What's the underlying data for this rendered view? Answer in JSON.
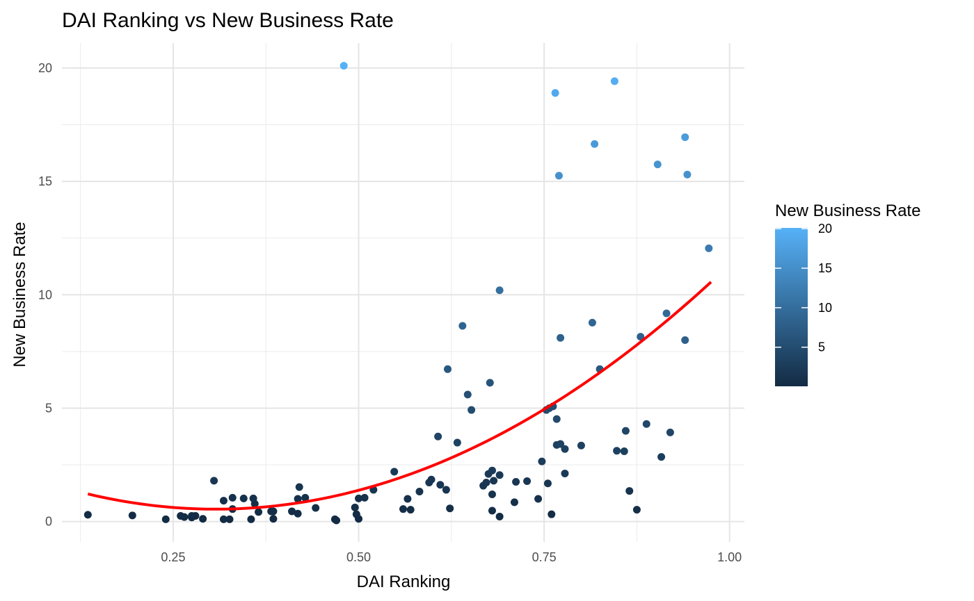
{
  "chart_data": {
    "type": "scatter",
    "title": "DAI Ranking vs New Business Rate",
    "xlabel": "DAI Ranking",
    "ylabel": "New Business Rate",
    "xlim": [
      0.1,
      1.02
    ],
    "ylim": [
      -0.9,
      21.1
    ],
    "x_ticks": [
      0.25,
      0.5,
      0.75,
      1.0
    ],
    "x_tick_labels": [
      "0.25",
      "0.50",
      "0.75",
      "1.00"
    ],
    "y_ticks": [
      0,
      5,
      10,
      15,
      20
    ],
    "y_tick_labels": [
      "0",
      "5",
      "10",
      "15",
      "20"
    ],
    "grid": true,
    "color_scale": {
      "title": "New Business Rate",
      "low_color": "#132b43",
      "high_color": "#56b1f7",
      "min": 0.05,
      "max": 20.1,
      "ticks": [
        5,
        10,
        15,
        20
      ],
      "tick_labels": [
        "5",
        "10",
        "15",
        "20"
      ],
      "legend_position": "right"
    },
    "trend_line": {
      "type": "quadratic fit",
      "color": "#ff0000",
      "x_range": [
        0.135,
        0.975
      ]
    },
    "points": [
      [
        0.135,
        0.3
      ],
      [
        0.195,
        0.27
      ],
      [
        0.24,
        0.1
      ],
      [
        0.26,
        0.25
      ],
      [
        0.265,
        0.2
      ],
      [
        0.275,
        0.25
      ],
      [
        0.275,
        0.18
      ],
      [
        0.28,
        0.25
      ],
      [
        0.29,
        0.12
      ],
      [
        0.305,
        1.8
      ],
      [
        0.318,
        0.1
      ],
      [
        0.318,
        0.92
      ],
      [
        0.326,
        0.1
      ],
      [
        0.33,
        1.05
      ],
      [
        0.33,
        0.55
      ],
      [
        0.345,
        1.02
      ],
      [
        0.355,
        0.1
      ],
      [
        0.358,
        1.02
      ],
      [
        0.36,
        0.78
      ],
      [
        0.365,
        0.42
      ],
      [
        0.382,
        0.45
      ],
      [
        0.385,
        0.45
      ],
      [
        0.385,
        0.12
      ],
      [
        0.41,
        0.45
      ],
      [
        0.418,
        0.35
      ],
      [
        0.418,
        1.0
      ],
      [
        0.42,
        1.52
      ],
      [
        0.428,
        1.05
      ],
      [
        0.442,
        0.6
      ],
      [
        0.468,
        0.1
      ],
      [
        0.47,
        0.05
      ],
      [
        0.48,
        20.1
      ],
      [
        0.495,
        0.62
      ],
      [
        0.497,
        0.32
      ],
      [
        0.5,
        1.02
      ],
      [
        0.5,
        0.12
      ],
      [
        0.508,
        1.05
      ],
      [
        0.52,
        1.4
      ],
      [
        0.548,
        2.2
      ],
      [
        0.56,
        0.55
      ],
      [
        0.566,
        1.0
      ],
      [
        0.57,
        0.52
      ],
      [
        0.582,
        1.32
      ],
      [
        0.595,
        1.72
      ],
      [
        0.598,
        1.85
      ],
      [
        0.607,
        3.75
      ],
      [
        0.61,
        1.62
      ],
      [
        0.618,
        1.4
      ],
      [
        0.62,
        6.72
      ],
      [
        0.623,
        0.58
      ],
      [
        0.633,
        3.48
      ],
      [
        0.64,
        8.63
      ],
      [
        0.647,
        5.6
      ],
      [
        0.652,
        4.92
      ],
      [
        0.668,
        1.58
      ],
      [
        0.672,
        1.72
      ],
      [
        0.675,
        2.1
      ],
      [
        0.677,
        6.12
      ],
      [
        0.68,
        2.25
      ],
      [
        0.68,
        1.2
      ],
      [
        0.68,
        0.48
      ],
      [
        0.682,
        1.8
      ],
      [
        0.69,
        2.05
      ],
      [
        0.69,
        10.2
      ],
      [
        0.69,
        0.22
      ],
      [
        0.71,
        0.85
      ],
      [
        0.712,
        1.75
      ],
      [
        0.727,
        1.78
      ],
      [
        0.742,
        1.0
      ],
      [
        0.747,
        2.65
      ],
      [
        0.753,
        4.92
      ],
      [
        0.755,
        1.68
      ],
      [
        0.757,
        5.0
      ],
      [
        0.76,
        0.32
      ],
      [
        0.762,
        5.08
      ],
      [
        0.765,
        18.9
      ],
      [
        0.767,
        3.38
      ],
      [
        0.767,
        4.52
      ],
      [
        0.77,
        15.25
      ],
      [
        0.772,
        8.1
      ],
      [
        0.772,
        3.42
      ],
      [
        0.778,
        3.2
      ],
      [
        0.778,
        2.12
      ],
      [
        0.8,
        3.35
      ],
      [
        0.815,
        8.77
      ],
      [
        0.818,
        16.65
      ],
      [
        0.825,
        6.72
      ],
      [
        0.845,
        19.42
      ],
      [
        0.848,
        3.12
      ],
      [
        0.858,
        3.1
      ],
      [
        0.86,
        4.0
      ],
      [
        0.865,
        1.35
      ],
      [
        0.875,
        0.52
      ],
      [
        0.88,
        8.15
      ],
      [
        0.888,
        4.3
      ],
      [
        0.903,
        15.75
      ],
      [
        0.908,
        2.85
      ],
      [
        0.915,
        9.18
      ],
      [
        0.92,
        3.93
      ],
      [
        0.94,
        16.95
      ],
      [
        0.94,
        8.0
      ],
      [
        0.943,
        15.3
      ],
      [
        0.972,
        12.05
      ]
    ]
  }
}
